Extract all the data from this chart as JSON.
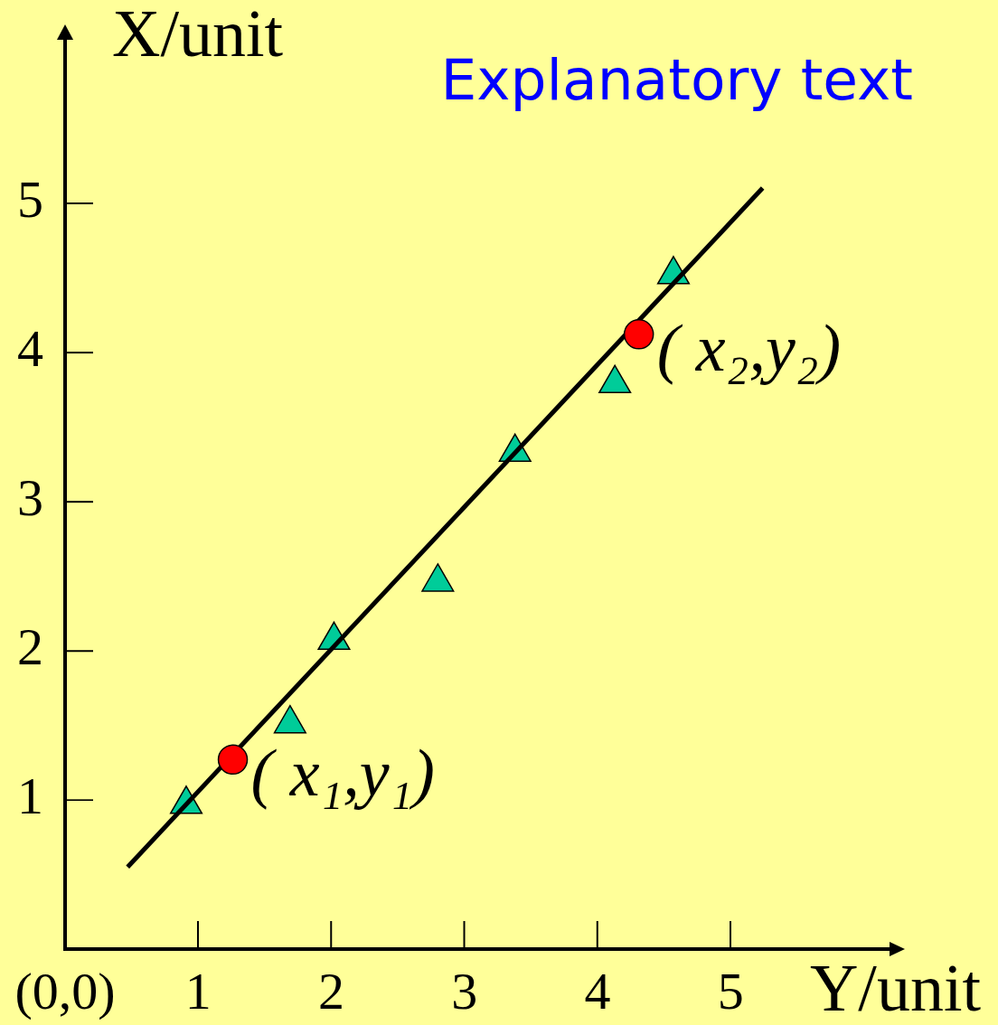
{
  "chart_data": {
    "type": "scatter",
    "xlabel": "Y/unit",
    "ylabel": "X/unit",
    "xlim": [
      0,
      6.2
    ],
    "ylim": [
      0,
      6.1
    ],
    "xticks": [
      {
        "value": 0,
        "label": "(0,0)"
      },
      1,
      2,
      3,
      4,
      5
    ],
    "yticks": [
      1,
      2,
      3,
      4,
      5
    ],
    "series": [
      {
        "marker": "triangle",
        "color": "#00cc99",
        "x": [
          0.91,
          1.69,
          2.02,
          2.8,
          3.38,
          4.13,
          4.57
        ],
        "values": [
          0.97,
          1.51,
          2.07,
          2.46,
          3.33,
          3.79,
          4.52
        ]
      },
      {
        "type": "line",
        "marker": "none",
        "color": "#000000",
        "x": [
          0.47,
          5.24
        ],
        "values": [
          0.55,
          5.1
        ]
      },
      {
        "marker": "circle",
        "color": "#ff0000",
        "x": [
          1.26,
          4.31
        ],
        "values": [
          1.27,
          4.12
        ]
      }
    ],
    "annotations": [
      "Explanatory text",
      {
        "text": "( x₁,y₁)",
        "x": 1.26,
        "y": 1.27
      },
      {
        "text": "( x₂,y₂)",
        "x": 4.31,
        "y": 4.12
      }
    ]
  }
}
